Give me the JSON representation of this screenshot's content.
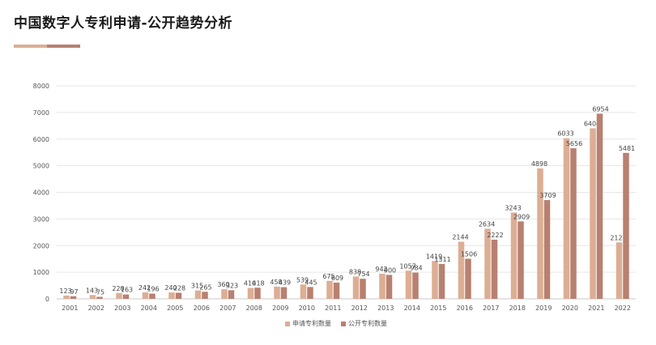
{
  "header": {
    "title": "中国数字人专利申请-公开趋势分析"
  },
  "colors": {
    "application": "#dcae94",
    "publication": "#b88070",
    "title_bar_left": "#dcae94",
    "title_bar_right": "#b88070"
  },
  "chart_data": {
    "type": "bar",
    "title": "",
    "xlabel": "",
    "ylabel": "",
    "ylim": [
      0,
      8000
    ],
    "yticks": [
      0,
      1000,
      2000,
      3000,
      4000,
      5000,
      6000,
      7000,
      8000
    ],
    "grid": true,
    "legend_position": "bottom",
    "categories": [
      "2001",
      "2002",
      "2003",
      "2004",
      "2005",
      "2006",
      "2007",
      "2008",
      "2009",
      "2010",
      "2011",
      "2012",
      "2013",
      "2014",
      "2015",
      "2016",
      "2017",
      "2018",
      "2019",
      "2020",
      "2021",
      "2022"
    ],
    "series": [
      {
        "name": "申请专利数量",
        "color": "#dcae94",
        "values": [
          123,
          143,
          220,
          242,
          240,
          315,
          360,
          410,
          458,
          539,
          675,
          838,
          942,
          1057,
          1419,
          2144,
          2634,
          3243,
          4898,
          6033,
          6404,
          2121
        ]
      },
      {
        "name": "公开专利数量",
        "color": "#b88070",
        "values": [
          97,
          75,
          163,
          196,
          228,
          265,
          323,
          418,
          439,
          445,
          609,
          754,
          900,
          984,
          1311,
          1506,
          2222,
          2909,
          3709,
          5656,
          6954,
          5481
        ]
      }
    ]
  }
}
